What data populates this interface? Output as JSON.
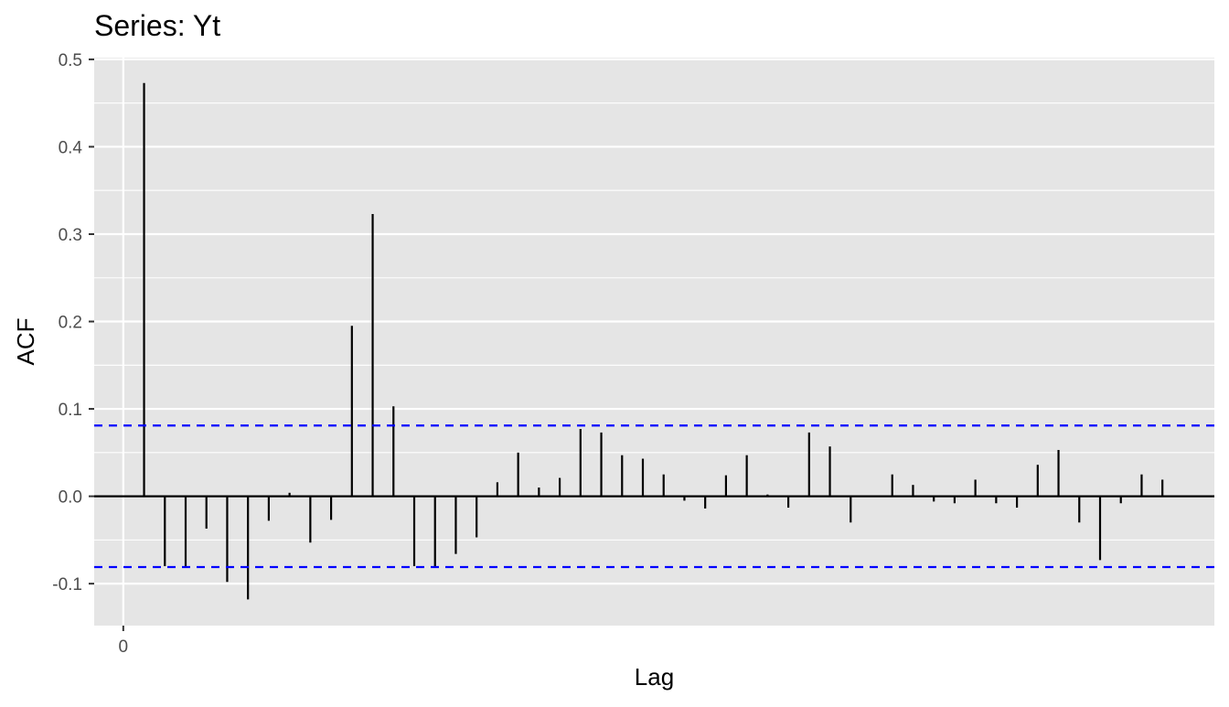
{
  "chart_data": {
    "type": "bar",
    "title": "Series: Yt",
    "xlabel": "Lag",
    "ylabel": "ACF",
    "xlim": [
      -1.4,
      52.5
    ],
    "ylim": [
      -0.148,
      0.502
    ],
    "x_ticks": [
      0
    ],
    "x_tick_labels": [
      "0"
    ],
    "y_ticks": [
      -0.1,
      0.0,
      0.1,
      0.2,
      0.3,
      0.4,
      0.5
    ],
    "y_tick_labels": [
      "-0.1",
      "0.0",
      "0.1",
      "0.2",
      "0.3",
      "0.4",
      "0.5"
    ],
    "lags": [
      1,
      2,
      3,
      4,
      5,
      6,
      7,
      8,
      9,
      10,
      11,
      12,
      13,
      14,
      15,
      16,
      17,
      18,
      19,
      20,
      21,
      22,
      23,
      24,
      25,
      26,
      27,
      28,
      29,
      30,
      31,
      32,
      33,
      34,
      35,
      36,
      37,
      38,
      39,
      40,
      41,
      42,
      43,
      44,
      45,
      46,
      47,
      48,
      49,
      50
    ],
    "values": [
      0.473,
      -0.08,
      -0.08,
      -0.037,
      -0.098,
      -0.118,
      -0.028,
      0.004,
      -0.053,
      -0.027,
      0.195,
      0.323,
      0.103,
      -0.08,
      -0.082,
      -0.066,
      -0.047,
      0.016,
      0.05,
      0.01,
      0.021,
      0.077,
      0.073,
      0.047,
      0.043,
      0.025,
      -0.005,
      -0.014,
      0.024,
      0.047,
      0.002,
      -0.013,
      0.073,
      0.057,
      -0.03,
      0.0,
      0.025,
      0.013,
      -0.006,
      -0.008,
      0.019,
      -0.008,
      -0.013,
      0.036,
      0.053,
      -0.03,
      -0.073,
      -0.008,
      0.025,
      0.019
    ],
    "confidence_limit": 0.081,
    "grid": true,
    "background": "#e5e5e5",
    "grid_color": "#ffffff",
    "bar_color": "#000000",
    "ci_color": "#0000ff"
  }
}
